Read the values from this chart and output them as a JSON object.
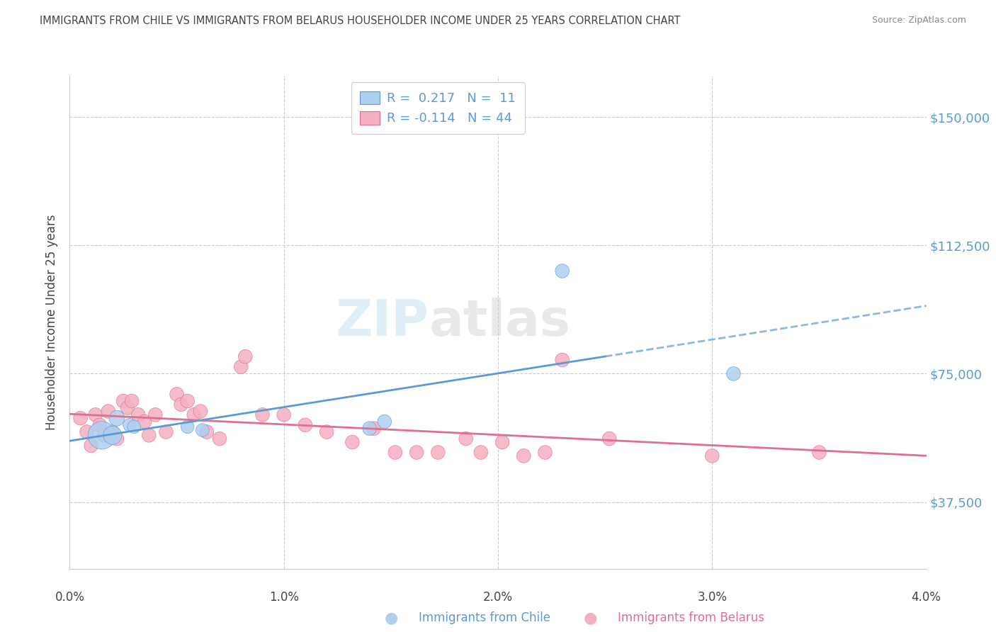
{
  "title": "IMMIGRANTS FROM CHILE VS IMMIGRANTS FROM BELARUS HOUSEHOLDER INCOME UNDER 25 YEARS CORRELATION CHART",
  "source": "Source: ZipAtlas.com",
  "ylabel": "Householder Income Under 25 years",
  "yticks": [
    37500,
    75000,
    112500,
    150000
  ],
  "ytick_labels": [
    "$37,500",
    "$75,000",
    "$112,500",
    "$150,000"
  ],
  "xlim": [
    0.0,
    4.0
  ],
  "ylim": [
    18000,
    162000
  ],
  "grid_color": "#cccccc",
  "chile_R": 0.217,
  "chile_N": 11,
  "belarus_R": -0.114,
  "belarus_N": 44,
  "chile_fill_color": "#aecff0",
  "chile_edge_color": "#5b9bd5",
  "belarus_fill_color": "#f4b0c0",
  "belarus_edge_color": "#e07090",
  "chile_line_color": "#5b9bd5",
  "belarus_line_color": "#e07090",
  "text_color": "#444444",
  "label_color_blue": "#5b9bd5",
  "chile_points": [
    [
      0.15,
      57000,
      800
    ],
    [
      0.2,
      57000,
      350
    ],
    [
      0.22,
      62000,
      250
    ],
    [
      0.28,
      60000,
      180
    ],
    [
      0.3,
      59500,
      180
    ],
    [
      0.55,
      59500,
      180
    ],
    [
      0.62,
      58500,
      180
    ],
    [
      1.4,
      59000,
      200
    ],
    [
      1.47,
      61000,
      200
    ],
    [
      2.3,
      105000,
      200
    ],
    [
      3.1,
      75000,
      200
    ]
  ],
  "belarus_points": [
    [
      0.05,
      62000,
      200
    ],
    [
      0.08,
      58000,
      200
    ],
    [
      0.1,
      54000,
      200
    ],
    [
      0.12,
      63000,
      200
    ],
    [
      0.14,
      60000,
      200
    ],
    [
      0.16,
      57000,
      200
    ],
    [
      0.18,
      64000,
      200
    ],
    [
      0.2,
      58000,
      200
    ],
    [
      0.22,
      56000,
      200
    ],
    [
      0.25,
      67000,
      200
    ],
    [
      0.27,
      65000,
      200
    ],
    [
      0.29,
      67000,
      200
    ],
    [
      0.32,
      63000,
      200
    ],
    [
      0.35,
      61000,
      200
    ],
    [
      0.37,
      57000,
      200
    ],
    [
      0.4,
      63000,
      200
    ],
    [
      0.45,
      58000,
      200
    ],
    [
      0.5,
      69000,
      200
    ],
    [
      0.52,
      66000,
      200
    ],
    [
      0.55,
      67000,
      200
    ],
    [
      0.58,
      63000,
      200
    ],
    [
      0.61,
      64000,
      200
    ],
    [
      0.64,
      58000,
      200
    ],
    [
      0.7,
      56000,
      200
    ],
    [
      0.8,
      77000,
      200
    ],
    [
      0.82,
      80000,
      200
    ],
    [
      0.9,
      63000,
      200
    ],
    [
      1.0,
      63000,
      200
    ],
    [
      1.1,
      60000,
      200
    ],
    [
      1.2,
      58000,
      200
    ],
    [
      1.32,
      55000,
      200
    ],
    [
      1.42,
      59000,
      200
    ],
    [
      1.52,
      52000,
      200
    ],
    [
      1.62,
      52000,
      200
    ],
    [
      1.72,
      52000,
      200
    ],
    [
      1.85,
      56000,
      200
    ],
    [
      1.92,
      52000,
      200
    ],
    [
      2.02,
      55000,
      200
    ],
    [
      2.12,
      51000,
      200
    ],
    [
      2.22,
      52000,
      200
    ],
    [
      2.3,
      79000,
      200
    ],
    [
      2.52,
      56000,
      200
    ],
    [
      3.0,
      51000,
      200
    ],
    [
      3.5,
      52000,
      200
    ]
  ]
}
